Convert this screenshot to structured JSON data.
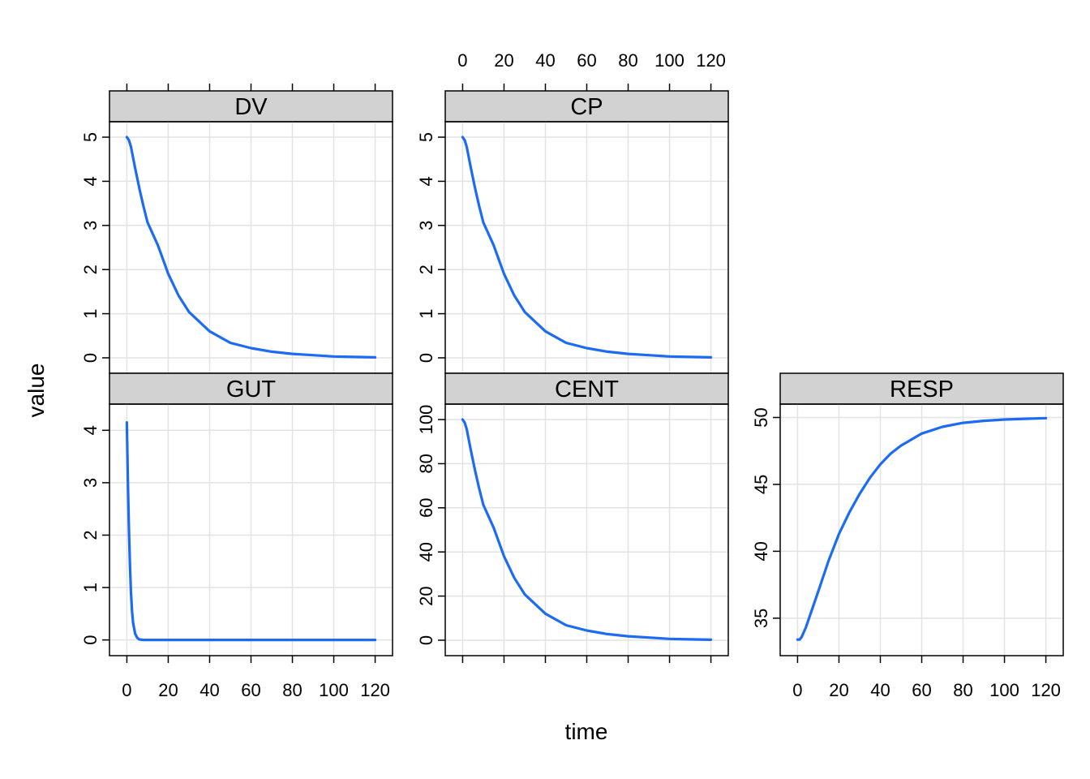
{
  "chart_data": {
    "type": "line",
    "layout": "lattice 3x2 panels, shared x axis",
    "xlabel": "time",
    "ylabel": "value",
    "grid": true,
    "colors": {
      "line": "#1C6BF2",
      "strip_bg": "#D2D2D2",
      "grid": "#E3E3E3",
      "frame": "#000000"
    },
    "x_ticks": [
      0,
      20,
      40,
      60,
      80,
      100,
      120
    ],
    "xlim": [
      -8.4,
      128.4
    ],
    "panels": [
      {
        "name": "DV",
        "row": "top",
        "col": 1,
        "ylim": [
          -0.35,
          5.35
        ],
        "y_ticks": [
          0,
          1,
          2,
          3,
          4,
          5
        ],
        "x": [
          0,
          1,
          2,
          4,
          6,
          8,
          10,
          15,
          20,
          25,
          30,
          40,
          50,
          60,
          70,
          80,
          90,
          100,
          110,
          120
        ],
        "y": [
          5.0,
          4.93,
          4.78,
          4.3,
          3.85,
          3.44,
          3.07,
          2.55,
          1.9,
          1.41,
          1.04,
          0.6,
          0.34,
          0.22,
          0.14,
          0.09,
          0.06,
          0.03,
          0.02,
          0.01
        ]
      },
      {
        "name": "CP",
        "row": "top",
        "col": 2,
        "ylim": [
          -0.35,
          5.35
        ],
        "y_ticks": [
          0,
          1,
          2,
          3,
          4,
          5
        ],
        "x": [
          0,
          1,
          2,
          4,
          6,
          8,
          10,
          15,
          20,
          25,
          30,
          40,
          50,
          60,
          70,
          80,
          90,
          100,
          110,
          120
        ],
        "y": [
          5.0,
          4.93,
          4.78,
          4.3,
          3.85,
          3.44,
          3.07,
          2.55,
          1.9,
          1.41,
          1.04,
          0.6,
          0.34,
          0.22,
          0.14,
          0.09,
          0.06,
          0.03,
          0.02,
          0.01
        ]
      },
      {
        "name": "GUT",
        "row": "bottom",
        "col": 1,
        "ylim": [
          -0.3,
          4.5
        ],
        "y_ticks": [
          0,
          1,
          2,
          3,
          4
        ],
        "x": [
          0,
          0.5,
          1,
          1.5,
          2,
          2.5,
          3,
          4,
          5,
          6,
          8,
          10,
          20,
          40,
          60,
          80,
          100,
          120
        ],
        "y": [
          4.15,
          3.0,
          2.1,
          1.4,
          0.9,
          0.55,
          0.33,
          0.12,
          0.04,
          0.01,
          0.0,
          0.0,
          0.0,
          0.0,
          0.0,
          0.0,
          0.0,
          0.0
        ]
      },
      {
        "name": "CENT",
        "row": "bottom",
        "col": 2,
        "ylim": [
          -7,
          107
        ],
        "y_ticks": [
          0,
          20,
          40,
          60,
          80,
          100
        ],
        "x": [
          0,
          1,
          2,
          4,
          6,
          8,
          10,
          15,
          20,
          25,
          30,
          40,
          50,
          60,
          70,
          80,
          90,
          100,
          110,
          120
        ],
        "y": [
          100,
          98.6,
          95.6,
          86,
          77,
          68.8,
          61.4,
          51,
          38,
          28.2,
          20.8,
          12,
          6.8,
          4.4,
          2.8,
          1.8,
          1.2,
          0.6,
          0.4,
          0.2
        ]
      },
      {
        "name": "RESP",
        "row": "bottom",
        "col": 3,
        "ylim": [
          32.2,
          51.0
        ],
        "y_ticks": [
          35,
          40,
          45,
          50
        ],
        "x": [
          0,
          1,
          2,
          4,
          6,
          8,
          10,
          15,
          20,
          25,
          30,
          35,
          40,
          45,
          50,
          60,
          70,
          80,
          90,
          100,
          110,
          120
        ],
        "y": [
          33.4,
          33.4,
          33.6,
          34.3,
          35.2,
          36.1,
          37.0,
          39.3,
          41.3,
          42.9,
          44.3,
          45.5,
          46.5,
          47.3,
          47.9,
          48.8,
          49.3,
          49.6,
          49.75,
          49.85,
          49.9,
          49.95
        ]
      }
    ]
  }
}
